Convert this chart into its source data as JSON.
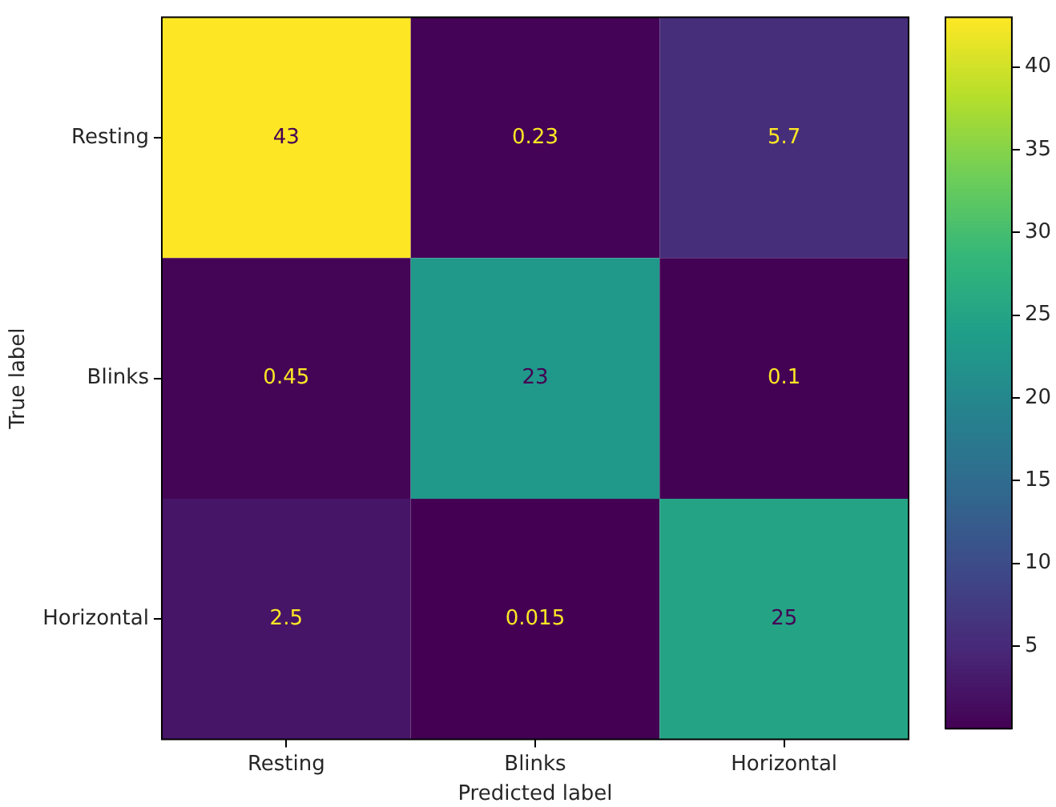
{
  "chart_data": {
    "type": "heatmap",
    "xlabel": "Predicted label",
    "ylabel": "True label",
    "categories": [
      "Resting",
      "Blinks",
      "Horizontal"
    ],
    "y_categories": [
      "Resting",
      "Blinks",
      "Horizontal"
    ],
    "cells": [
      [
        43,
        0.23,
        5.7
      ],
      [
        0.45,
        23,
        0.1
      ],
      [
        2.5,
        0.015,
        25
      ]
    ],
    "clim": [
      0.015,
      43
    ],
    "cticks": [
      5,
      10,
      15,
      20,
      25,
      30,
      35,
      40
    ],
    "data_labels": true
  }
}
